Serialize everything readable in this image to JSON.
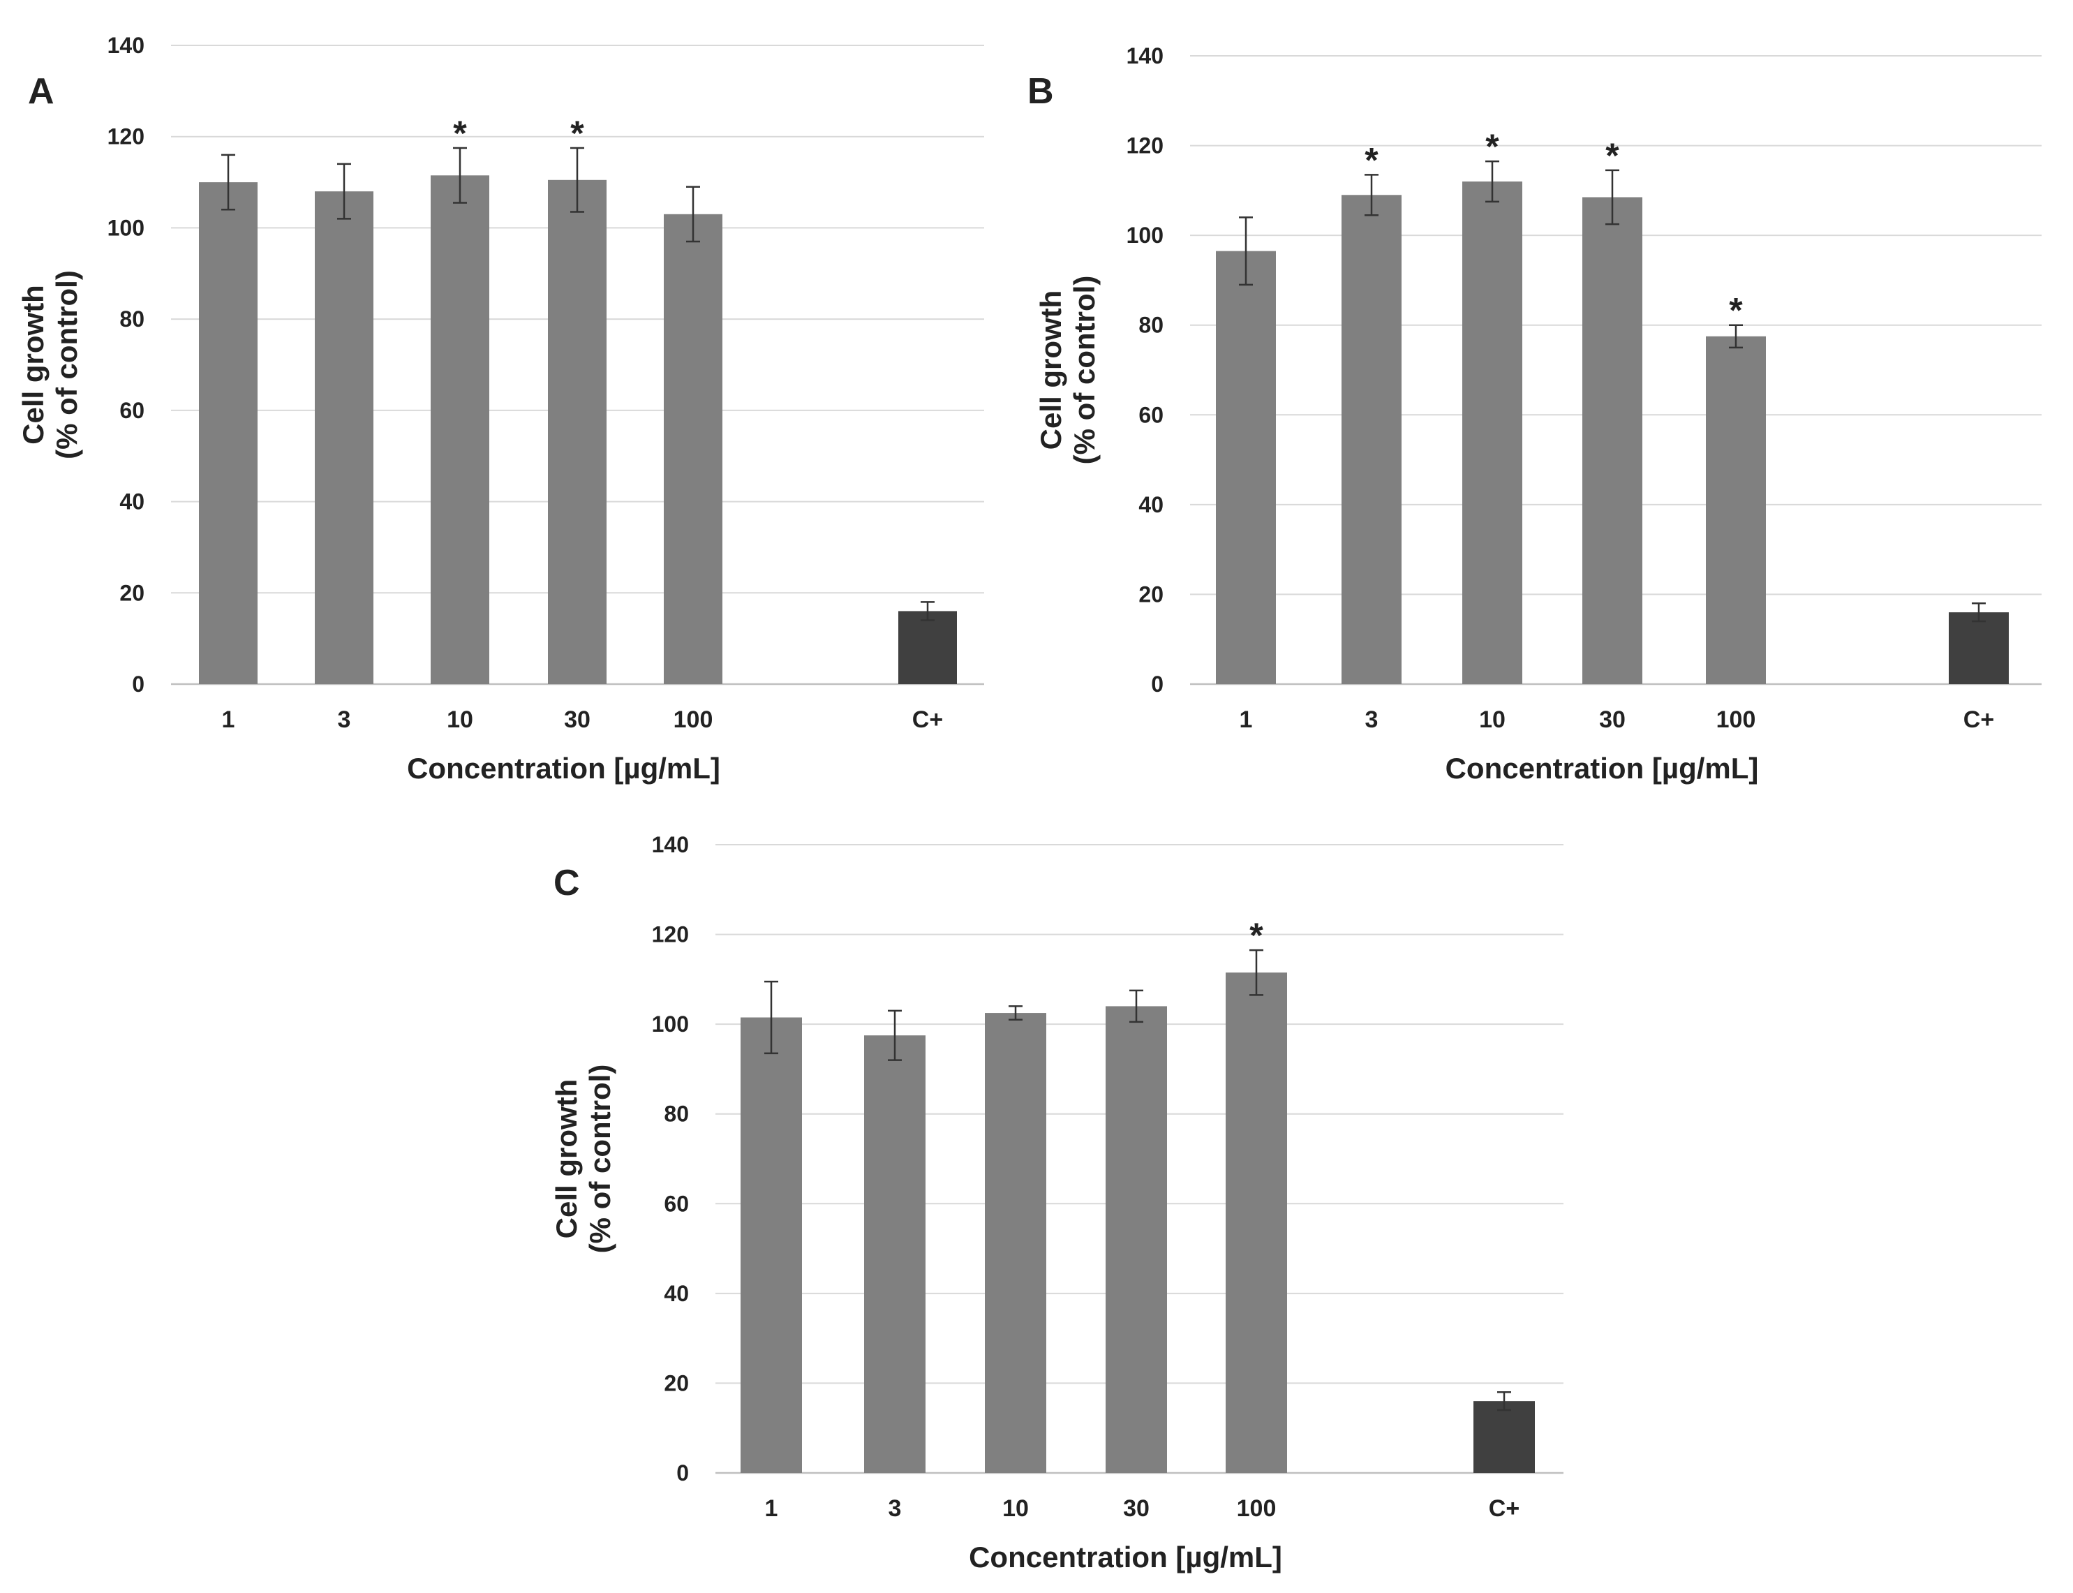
{
  "chart_data": [
    {
      "panel": "A",
      "type": "bar",
      "categories": [
        "1",
        "3",
        "10",
        "30",
        "100",
        "C+"
      ],
      "values": [
        110,
        108,
        111.5,
        110.5,
        103,
        16
      ],
      "errors": [
        6,
        6,
        6,
        7,
        6,
        2
      ],
      "significance": [
        "",
        "",
        "*",
        "*",
        "",
        ""
      ],
      "bar_colors": [
        "#808080",
        "#808080",
        "#808080",
        "#808080",
        "#808080",
        "#404040"
      ],
      "xlabel": "Concentration [µg/mL]",
      "ylabel_line1": "Cell growth",
      "ylabel_line2": "(% of control)",
      "ylim": [
        0,
        140
      ],
      "yticks": [
        "0",
        "20",
        "40",
        "60",
        "80",
        "100",
        "120",
        "140"
      ],
      "grid": true,
      "legend": "none"
    },
    {
      "panel": "B",
      "type": "bar",
      "categories": [
        "1",
        "3",
        "10",
        "30",
        "100",
        "C+"
      ],
      "values": [
        96.5,
        109,
        112,
        108.5,
        77.5,
        16
      ],
      "errors": [
        7.5,
        4.5,
        4.5,
        6,
        2.5,
        2
      ],
      "significance": [
        "",
        "*",
        "*",
        "*",
        "*",
        ""
      ],
      "bar_colors": [
        "#808080",
        "#808080",
        "#808080",
        "#808080",
        "#808080",
        "#404040"
      ],
      "xlabel": "Concentration [µg/mL]",
      "ylabel_line1": "Cell growth",
      "ylabel_line2": "(% of control)",
      "ylim": [
        0,
        140
      ],
      "yticks": [
        "0",
        "20",
        "40",
        "60",
        "80",
        "100",
        "120",
        "140"
      ],
      "grid": true,
      "legend": "none"
    },
    {
      "panel": "C",
      "type": "bar",
      "categories": [
        "1",
        "3",
        "10",
        "30",
        "100",
        "C+"
      ],
      "values": [
        101.5,
        97.5,
        102.5,
        104,
        111.5,
        16
      ],
      "errors": [
        8,
        5.5,
        1.5,
        3.5,
        5,
        2
      ],
      "significance": [
        "",
        "",
        "",
        "",
        "*",
        ""
      ],
      "bar_colors": [
        "#808080",
        "#808080",
        "#808080",
        "#808080",
        "#808080",
        "#404040"
      ],
      "xlabel": "Concentration [µg/mL]",
      "ylabel_line1": "Cell growth",
      "ylabel_line2": "(% of control)",
      "ylim": [
        0,
        140
      ],
      "yticks": [
        "0",
        "20",
        "40",
        "60",
        "80",
        "100",
        "120",
        "140"
      ],
      "grid": true,
      "legend": "none"
    }
  ]
}
